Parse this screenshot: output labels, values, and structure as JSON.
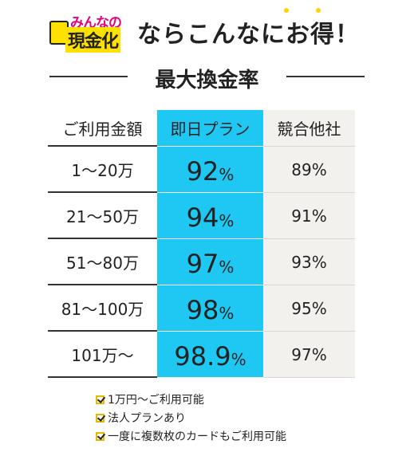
{
  "header": {
    "logo_top": "みんなの",
    "logo_bottom": "現金化",
    "title": "ならこんなにお得！",
    "subtitle": "最大換金率"
  },
  "table": {
    "columns": [
      "ご利用金額",
      "即日プラン",
      "競合他社"
    ],
    "rows": [
      {
        "amount": "1〜20万",
        "plan": {
          "number": "92",
          "unit": "%"
        },
        "other": "89%"
      },
      {
        "amount": "21〜50万",
        "plan": {
          "number": "94",
          "unit": "%"
        },
        "other": "91%"
      },
      {
        "amount": "51〜80万",
        "plan": {
          "number": "97",
          "unit": "%"
        },
        "other": "93%"
      },
      {
        "amount": "81〜100万",
        "plan": {
          "number": "98",
          "unit": "%"
        },
        "other": "95%"
      },
      {
        "amount": "101万〜",
        "plan": {
          "number": "98.9",
          "unit": "%"
        },
        "other": "97%"
      }
    ]
  },
  "notes": [
    "1万円〜ご利用可能",
    "法人プランあり",
    "一度に複数枚のカードもご利用可能"
  ]
}
